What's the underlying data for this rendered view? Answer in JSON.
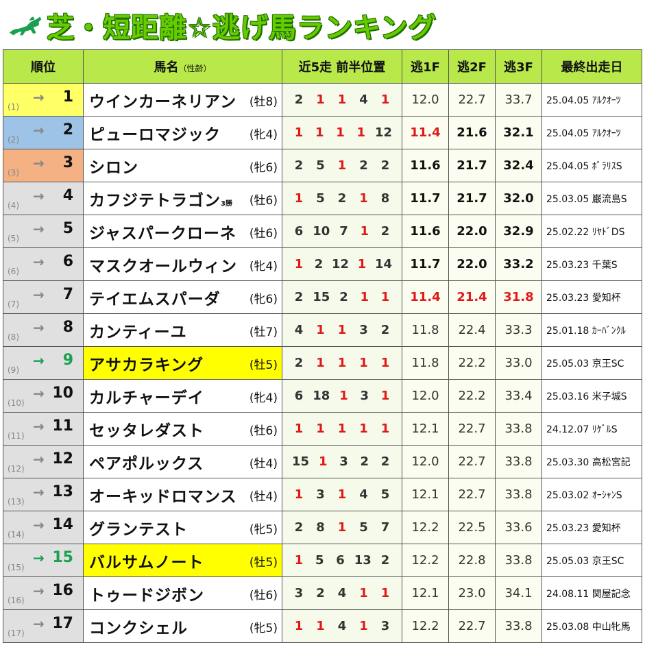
{
  "title": "芝・短距離☆逃げ馬ランキング",
  "colors": {
    "header_bg": "#b9e84a",
    "title_green": "#66cc00",
    "highlight": "#ffff00",
    "red": "#e01818",
    "up_green": "#1aa050"
  },
  "headers": {
    "rank": "順位",
    "name": "馬名",
    "name_note": "（性齢）",
    "positions": "近5走 前半位置",
    "f1": "逃1F",
    "f2": "逃2F",
    "f3": "逃3F",
    "last": "最終出走日"
  },
  "rows": [
    {
      "prev": "(1)",
      "arrow": "→",
      "rank": "1",
      "name": "ウインカーネリアン",
      "note": "",
      "sex": "(牡8)",
      "pos": [
        "2",
        "1",
        "1",
        "4",
        "1"
      ],
      "f1": "12.0",
      "f2": "22.7",
      "f3": "33.7",
      "last": "25.04.05 ｱﾙｸｵｰﾂ"
    },
    {
      "prev": "(2)",
      "arrow": "→",
      "rank": "2",
      "name": "ピューロマジック",
      "note": "",
      "sex": "(牝4)",
      "pos": [
        "1",
        "1",
        "1",
        "1",
        "12"
      ],
      "f1": "11.4",
      "f2": "21.6",
      "f3": "32.1",
      "last": "25.04.05 ｱﾙｸｵｰﾂ"
    },
    {
      "prev": "(3)",
      "arrow": "→",
      "rank": "3",
      "name": "シロン",
      "note": "",
      "sex": "(牝6)",
      "pos": [
        "2",
        "5",
        "1",
        "2",
        "2"
      ],
      "f1": "11.6",
      "f2": "21.7",
      "f3": "32.4",
      "last": "25.04.05 ﾎﾟﾗﾘｽS"
    },
    {
      "prev": "(4)",
      "arrow": "→",
      "rank": "4",
      "name": "カフジテトラゴン",
      "note": "3勝",
      "sex": "(牡6)",
      "pos": [
        "1",
        "5",
        "2",
        "1",
        "8"
      ],
      "f1": "11.7",
      "f2": "21.7",
      "f3": "32.0",
      "last": "25.03.05 巌流島S"
    },
    {
      "prev": "(5)",
      "arrow": "→",
      "rank": "5",
      "name": "ジャスパークローネ",
      "note": "",
      "sex": "(牡6)",
      "pos": [
        "6",
        "10",
        "7",
        "1",
        "2"
      ],
      "f1": "11.6",
      "f2": "22.0",
      "f3": "32.9",
      "last": "25.02.22 ﾘﾔﾄﾞDS"
    },
    {
      "prev": "(6)",
      "arrow": "→",
      "rank": "6",
      "name": "マスクオールウィン",
      "note": "",
      "sex": "(牝4)",
      "pos": [
        "1",
        "2",
        "12",
        "1",
        "14"
      ],
      "f1": "11.7",
      "f2": "22.0",
      "f3": "33.2",
      "last": "25.03.23 千葉S"
    },
    {
      "prev": "(7)",
      "arrow": "→",
      "rank": "7",
      "name": "テイエムスパーダ",
      "note": "",
      "sex": "(牝6)",
      "pos": [
        "2",
        "15",
        "2",
        "1",
        "1"
      ],
      "f1": "11.4",
      "f2": "21.4",
      "f3": "31.8",
      "last": "25.03.23 愛知杯"
    },
    {
      "prev": "(8)",
      "arrow": "→",
      "rank": "8",
      "name": "カンティーユ",
      "note": "",
      "sex": "(牡7)",
      "pos": [
        "4",
        "1",
        "1",
        "3",
        "2"
      ],
      "f1": "11.8",
      "f2": "22.4",
      "f3": "33.3",
      "last": "25.01.18 ｶｰﾊﾞﾝｸﾙ"
    },
    {
      "prev": "(9)",
      "arrow": "→",
      "rank": "9",
      "name": "アサカラキング",
      "note": "",
      "sex": "(牡5)",
      "pos": [
        "2",
        "1",
        "1",
        "1",
        "1"
      ],
      "f1": "11.8",
      "f2": "22.2",
      "f3": "33.0",
      "last": "25.05.03 京王SC"
    },
    {
      "prev": "(10)",
      "arrow": "→",
      "rank": "10",
      "name": "カルチャーデイ",
      "note": "",
      "sex": "(牝4)",
      "pos": [
        "6",
        "18",
        "1",
        "3",
        "1"
      ],
      "f1": "12.0",
      "f2": "22.2",
      "f3": "33.4",
      "last": "25.03.16 米子城S"
    },
    {
      "prev": "(11)",
      "arrow": "→",
      "rank": "11",
      "name": "セッタレダスト",
      "note": "",
      "sex": "(牡6)",
      "pos": [
        "1",
        "1",
        "1",
        "1",
        "1"
      ],
      "f1": "12.1",
      "f2": "22.7",
      "f3": "33.8",
      "last": "24.12.07 ﾘｹﾞﾙS"
    },
    {
      "prev": "(12)",
      "arrow": "→",
      "rank": "12",
      "name": "ペアポルックス",
      "note": "",
      "sex": "(牡4)",
      "pos": [
        "15",
        "1",
        "3",
        "2",
        "2"
      ],
      "f1": "12.0",
      "f2": "22.7",
      "f3": "33.8",
      "last": "25.03.30 高松宮記"
    },
    {
      "prev": "(13)",
      "arrow": "→",
      "rank": "13",
      "name": "オーキッドロマンス",
      "note": "",
      "sex": "(牡4)",
      "pos": [
        "1",
        "3",
        "1",
        "4",
        "5"
      ],
      "f1": "12.1",
      "f2": "22.7",
      "f3": "33.8",
      "last": "25.03.02 ｵｰｼｬﾝS"
    },
    {
      "prev": "(14)",
      "arrow": "→",
      "rank": "14",
      "name": "グランテスト",
      "note": "",
      "sex": "(牝5)",
      "pos": [
        "2",
        "8",
        "1",
        "5",
        "7"
      ],
      "f1": "12.2",
      "f2": "22.5",
      "f3": "33.6",
      "last": "25.03.23 愛知杯"
    },
    {
      "prev": "(15)",
      "arrow": "→",
      "rank": "15",
      "name": "バルサムノート",
      "note": "",
      "sex": "(牡5)",
      "pos": [
        "1",
        "5",
        "6",
        "13",
        "2"
      ],
      "f1": "12.2",
      "f2": "22.8",
      "f3": "33.8",
      "last": "25.05.03 京王SC"
    },
    {
      "prev": "(16)",
      "arrow": "→",
      "rank": "16",
      "name": "トゥードジボン",
      "note": "",
      "sex": "(牡6)",
      "pos": [
        "3",
        "2",
        "4",
        "1",
        "1"
      ],
      "f1": "12.1",
      "f2": "23.0",
      "f3": "34.1",
      "last": "24.08.11 関屋記念"
    },
    {
      "prev": "(17)",
      "arrow": "→",
      "rank": "17",
      "name": "コンクシェル",
      "note": "",
      "sex": "(牝5)",
      "pos": [
        "1",
        "1",
        "4",
        "1",
        "3"
      ],
      "f1": "12.2",
      "f2": "22.7",
      "f3": "33.8",
      "last": "25.03.08 中山牝馬"
    }
  ]
}
